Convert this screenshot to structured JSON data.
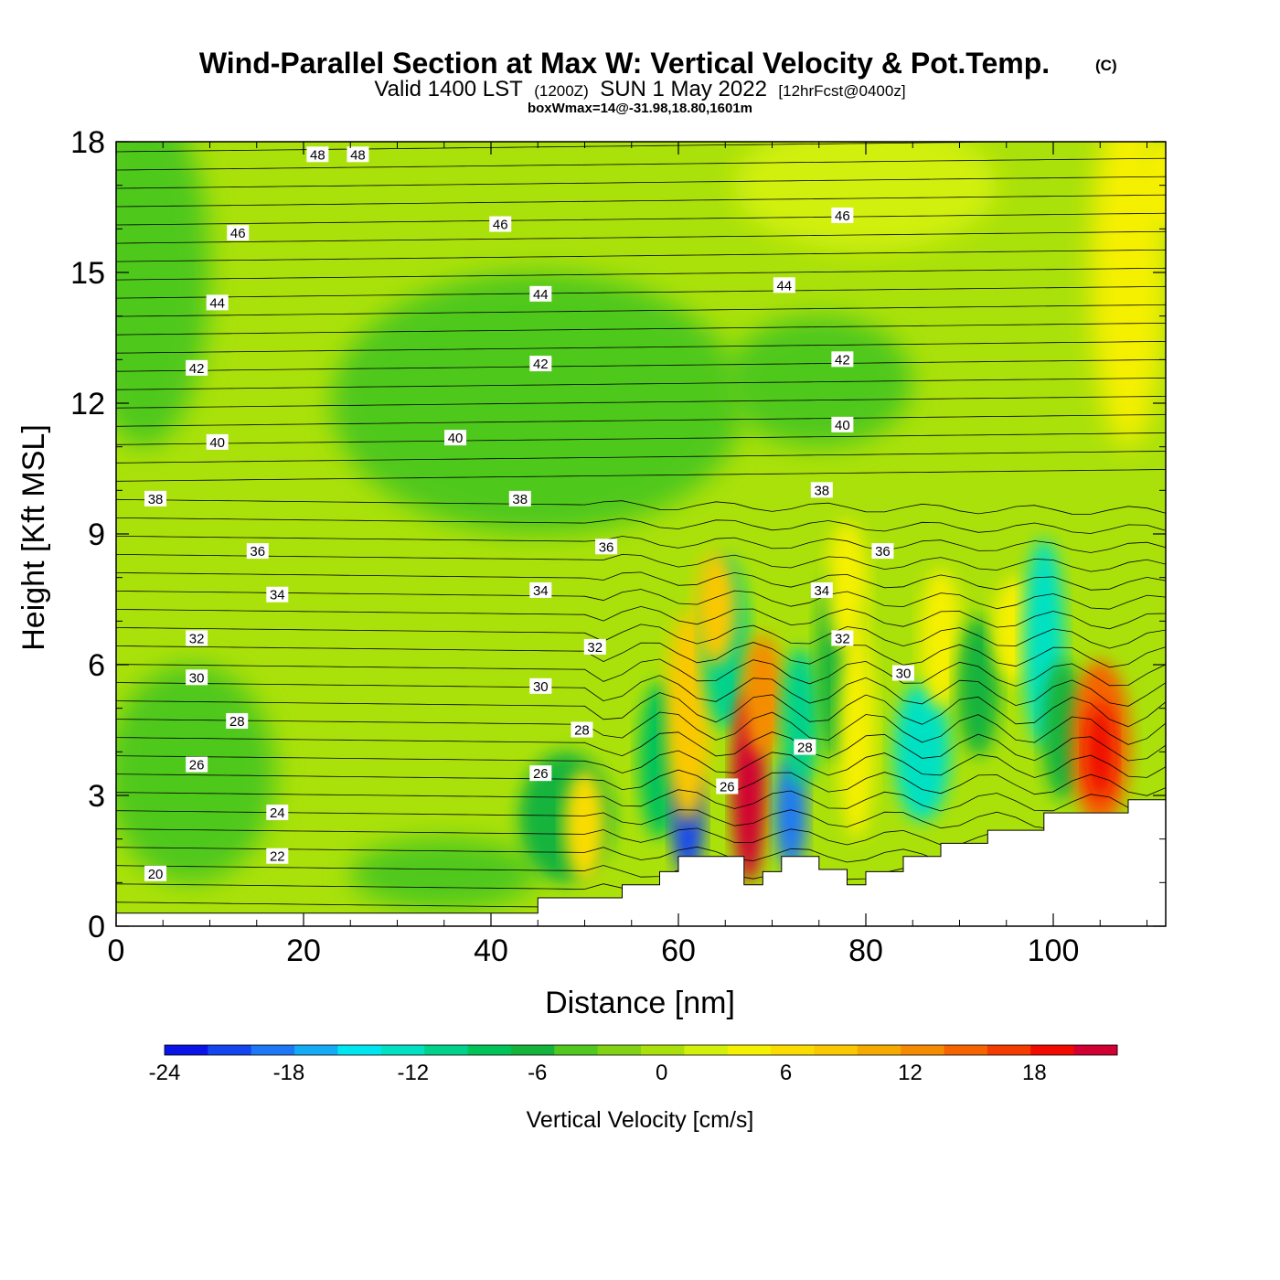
{
  "title": {
    "main": "Wind-Parallel Section at Max W: Vertical Velocity & Pot.Temp.",
    "copyright": "(C)",
    "valid_prefix": "Valid 1400 LST",
    "valid_zulu": "(1200Z)",
    "valid_date": "SUN 1 May 2022",
    "forecast": "[12hrFcst@0400z]",
    "box": "boxWmax=14@-31.98,18.80,1601m"
  },
  "chart_data": {
    "type": "heatmap",
    "xlabel": "Distance [nm]",
    "ylabel": "Height [Kft MSL]",
    "xlim": [
      0,
      112
    ],
    "ylim": [
      0,
      18
    ],
    "xticks": [
      "0",
      "20",
      "40",
      "60",
      "80",
      "100"
    ],
    "xtick_values": [
      0,
      20,
      40,
      60,
      80,
      100
    ],
    "yticks": [
      "0",
      "3",
      "6",
      "9",
      "12",
      "15",
      "18"
    ],
    "ytick_values": [
      0,
      3,
      6,
      9,
      12,
      15,
      18
    ],
    "colorbar": {
      "label": "Vertical Velocity [cm/s]",
      "range": [
        -24,
        22
      ],
      "ticks": [
        "-24",
        "-18",
        "-12",
        "-6",
        "0",
        "6",
        "12",
        "18"
      ],
      "tick_values": [
        -24,
        -18,
        -12,
        -6,
        0,
        6,
        12,
        18
      ],
      "colors": [
        "#0a14e6",
        "#1446f0",
        "#1e78f5",
        "#14aaf5",
        "#00e6f0",
        "#00e1c3",
        "#00d28c",
        "#00c35a",
        "#14b43c",
        "#50c81e",
        "#82d214",
        "#aae10a",
        "#d2f00a",
        "#f5f000",
        "#fadc00",
        "#fac800",
        "#f5aa00",
        "#f58c00",
        "#f56400",
        "#f53c00",
        "#f00a00",
        "#d20032"
      ]
    },
    "terrain_kft": [
      [
        0,
        0.3
      ],
      [
        45,
        0.3
      ],
      [
        45,
        0.65
      ],
      [
        54,
        0.65
      ],
      [
        54,
        0.95
      ],
      [
        58,
        0.95
      ],
      [
        58,
        1.25
      ],
      [
        60,
        1.25
      ],
      [
        60,
        1.6
      ],
      [
        67,
        1.6
      ],
      [
        67,
        0.95
      ],
      [
        69,
        0.95
      ],
      [
        69,
        1.25
      ],
      [
        71,
        1.25
      ],
      [
        71,
        1.6
      ],
      [
        75,
        1.6
      ],
      [
        75,
        1.3
      ],
      [
        78,
        1.3
      ],
      [
        78,
        0.95
      ],
      [
        80,
        0.95
      ],
      [
        80,
        1.25
      ],
      [
        84,
        1.25
      ],
      [
        84,
        1.6
      ],
      [
        88,
        1.6
      ],
      [
        88,
        1.9
      ],
      [
        93,
        1.9
      ],
      [
        93,
        2.2
      ],
      [
        99,
        2.2
      ],
      [
        99,
        2.6
      ],
      [
        108,
        2.6
      ],
      [
        108,
        2.9
      ],
      [
        112,
        2.9
      ]
    ],
    "vertical_velocity_features": [
      {
        "x": 68,
        "z": 3.5,
        "w": 20,
        "note": "updraft core"
      },
      {
        "x": 61,
        "z": 2.5,
        "w": -20,
        "note": "downdraft"
      },
      {
        "x": 72,
        "z": 2.8,
        "w": -18,
        "note": "downdraft"
      },
      {
        "x": 105,
        "z": 4.0,
        "w": 18,
        "note": "updraft"
      },
      {
        "x": 86,
        "z": 4.0,
        "w": -12,
        "note": "downdraft"
      },
      {
        "x": 98,
        "z": 6.5,
        "w": -12,
        "note": "downdraft"
      }
    ],
    "theta_contour_labels": [
      {
        "text": "48",
        "x": 21.5,
        "z": 17.7
      },
      {
        "text": "48",
        "x": 25.8,
        "z": 17.7
      },
      {
        "text": "46",
        "x": 13.0,
        "z": 15.9
      },
      {
        "text": "46",
        "x": 41.0,
        "z": 16.1
      },
      {
        "text": "46",
        "x": 77.5,
        "z": 16.3
      },
      {
        "text": "44",
        "x": 10.8,
        "z": 14.3
      },
      {
        "text": "44",
        "x": 45.3,
        "z": 14.5
      },
      {
        "text": "44",
        "x": 71.3,
        "z": 14.7
      },
      {
        "text": "42",
        "x": 8.6,
        "z": 12.8
      },
      {
        "text": "42",
        "x": 45.3,
        "z": 12.9
      },
      {
        "text": "42",
        "x": 77.5,
        "z": 13.0
      },
      {
        "text": "40",
        "x": 10.8,
        "z": 11.1
      },
      {
        "text": "40",
        "x": 36.2,
        "z": 11.2
      },
      {
        "text": "40",
        "x": 77.5,
        "z": 11.5
      },
      {
        "text": "38",
        "x": 4.2,
        "z": 9.8
      },
      {
        "text": "38",
        "x": 43.1,
        "z": 9.8
      },
      {
        "text": "38",
        "x": 75.3,
        "z": 10.0
      },
      {
        "text": "36",
        "x": 15.1,
        "z": 8.6
      },
      {
        "text": "36",
        "x": 52.3,
        "z": 8.7
      },
      {
        "text": "36",
        "x": 81.8,
        "z": 8.6
      },
      {
        "text": "34",
        "x": 17.2,
        "z": 7.6
      },
      {
        "text": "34",
        "x": 45.3,
        "z": 7.7
      },
      {
        "text": "34",
        "x": 75.3,
        "z": 7.7
      },
      {
        "text": "32",
        "x": 8.6,
        "z": 6.6
      },
      {
        "text": "32",
        "x": 51.1,
        "z": 6.4
      },
      {
        "text": "32",
        "x": 77.5,
        "z": 6.6
      },
      {
        "text": "30",
        "x": 8.6,
        "z": 5.7
      },
      {
        "text": "30",
        "x": 45.3,
        "z": 5.5
      },
      {
        "text": "30",
        "x": 84.0,
        "z": 5.8
      },
      {
        "text": "28",
        "x": 12.9,
        "z": 4.7
      },
      {
        "text": "28",
        "x": 49.7,
        "z": 4.5
      },
      {
        "text": "28",
        "x": 73.5,
        "z": 4.1
      },
      {
        "text": "26",
        "x": 8.6,
        "z": 3.7
      },
      {
        "text": "26",
        "x": 45.3,
        "z": 3.5
      },
      {
        "text": "26",
        "x": 65.2,
        "z": 3.2
      },
      {
        "text": "24",
        "x": 17.2,
        "z": 2.6
      },
      {
        "text": "22",
        "x": 17.2,
        "z": 1.6
      },
      {
        "text": "20",
        "x": 4.2,
        "z": 1.2
      }
    ]
  }
}
